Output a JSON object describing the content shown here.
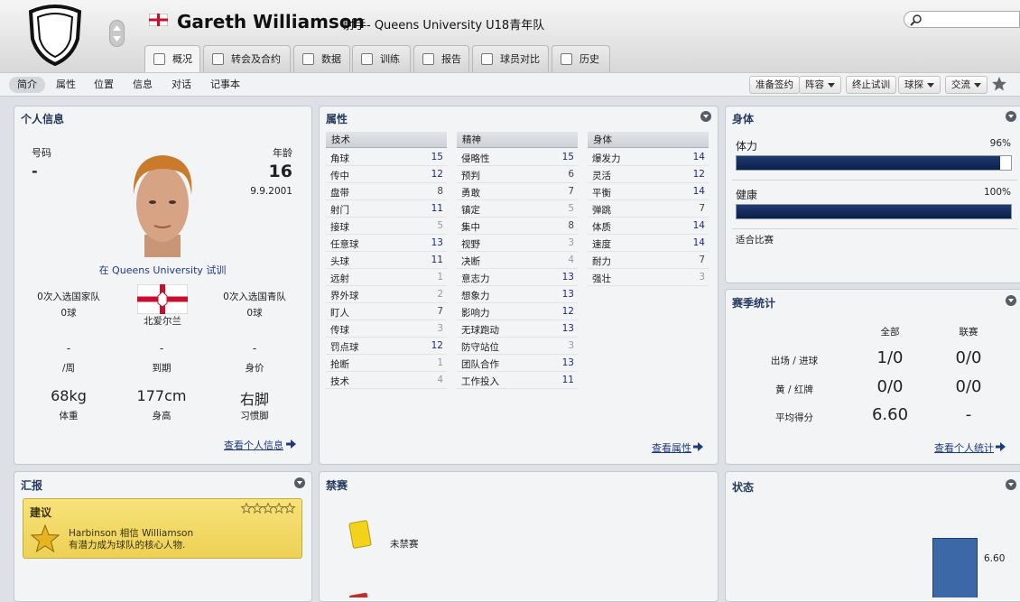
{
  "header": {
    "name": "Gareth Williamson",
    "subtitle": "射手- Queens University U18青年队"
  },
  "tabs": [
    "概况",
    "转会及合约",
    "数据",
    "训练",
    "报告",
    "球员对比",
    "历史"
  ],
  "subnav": [
    "简介",
    "属性",
    "位置",
    "信息",
    "对话",
    "记事本"
  ],
  "actions": [
    {
      "label": "准备签约",
      "menu": false
    },
    {
      "label": "阵容",
      "menu": true
    },
    {
      "label": "终止试训",
      "menu": false
    },
    {
      "label": "球探",
      "menu": true
    },
    {
      "label": "交流",
      "menu": true
    }
  ],
  "personal": {
    "title": "个人信息",
    "number_label": "号码",
    "number": "-",
    "age_label": "年龄",
    "age": "16",
    "dob": "9.9.2001",
    "trial": "在 Queens University 试训",
    "caps": "0次入选国家队",
    "goals": "0球",
    "nation": "北爱尔兰",
    "youth_caps": "0次入选国青队",
    "youth_goals": "0球",
    "contract": [
      {
        "value": "-",
        "label": "/周"
      },
      {
        "value": "-",
        "label": "到期"
      },
      {
        "value": "-",
        "label": "身价"
      }
    ],
    "physique": [
      {
        "value": "68kg",
        "label": "体重"
      },
      {
        "value": "177cm",
        "label": "身高"
      },
      {
        "value": "右脚",
        "label": "习惯脚"
      }
    ],
    "link": "查看个人信息"
  },
  "attributes": {
    "title": "属性",
    "link": "查看属性",
    "groups": [
      {
        "name": "技术",
        "items": [
          {
            "name": "角球",
            "value": 15
          },
          {
            "name": "传中",
            "value": 12
          },
          {
            "name": "盘带",
            "value": 8
          },
          {
            "name": "射门",
            "value": 11
          },
          {
            "name": "接球",
            "value": 5
          },
          {
            "name": "任意球",
            "value": 13
          },
          {
            "name": "头球",
            "value": 11
          },
          {
            "name": "远射",
            "value": 1
          },
          {
            "name": "界外球",
            "value": 2
          },
          {
            "name": "盯人",
            "value": 7
          },
          {
            "name": "传球",
            "value": 3
          },
          {
            "name": "罚点球",
            "value": 12
          },
          {
            "name": "抢断",
            "value": 1
          },
          {
            "name": "技术",
            "value": 4
          }
        ]
      },
      {
        "name": "精神",
        "items": [
          {
            "name": "侵略性",
            "value": 15
          },
          {
            "name": "预判",
            "value": 6
          },
          {
            "name": "勇敢",
            "value": 7
          },
          {
            "name": "镇定",
            "value": 5
          },
          {
            "name": "集中",
            "value": 8
          },
          {
            "name": "视野",
            "value": 3
          },
          {
            "name": "决断",
            "value": 4
          },
          {
            "name": "意志力",
            "value": 13
          },
          {
            "name": "想象力",
            "value": 13
          },
          {
            "name": "影响力",
            "value": 12
          },
          {
            "name": "无球跑动",
            "value": 13
          },
          {
            "name": "防守站位",
            "value": 3
          },
          {
            "name": "团队合作",
            "value": 13
          },
          {
            "name": "工作投入",
            "value": 11
          }
        ]
      },
      {
        "name": "身体",
        "items": [
          {
            "name": "爆发力",
            "value": 14
          },
          {
            "name": "灵活",
            "value": 12
          },
          {
            "name": "平衡",
            "value": 14
          },
          {
            "name": "弹跳",
            "value": 7
          },
          {
            "name": "体质",
            "value": 14
          },
          {
            "name": "速度",
            "value": 14
          },
          {
            "name": "耐力",
            "value": 7
          },
          {
            "name": "强壮",
            "value": 3
          }
        ]
      }
    ]
  },
  "physical": {
    "title": "身体",
    "bars": [
      {
        "label": "体力",
        "value": 96,
        "value_label": "96%"
      },
      {
        "label": "健康",
        "value": 100,
        "value_label": "100%"
      }
    ],
    "match_status": "适合比赛"
  },
  "season_stats": {
    "title": "赛季统计",
    "columns": [
      "全部",
      "联赛"
    ],
    "rows": [
      {
        "label": "出场 / 进球",
        "values": [
          "1/0",
          "0/0"
        ]
      },
      {
        "label": "黄 / 红牌",
        "values": [
          "0/0",
          "0/0"
        ]
      },
      {
        "label": "平均得分",
        "values": [
          "6.60",
          "-"
        ]
      }
    ],
    "link": "查看个人统计"
  },
  "report": {
    "title": "汇报",
    "box_title": "建议",
    "lines": [
      "Harbinson 相信 Williamson",
      "有潜力成为球队的核心人物."
    ]
  },
  "suspension": {
    "title": "禁赛",
    "status": "未禁赛"
  },
  "form": {
    "title": "状态",
    "value": 6.6,
    "value_label": "6.60"
  }
}
